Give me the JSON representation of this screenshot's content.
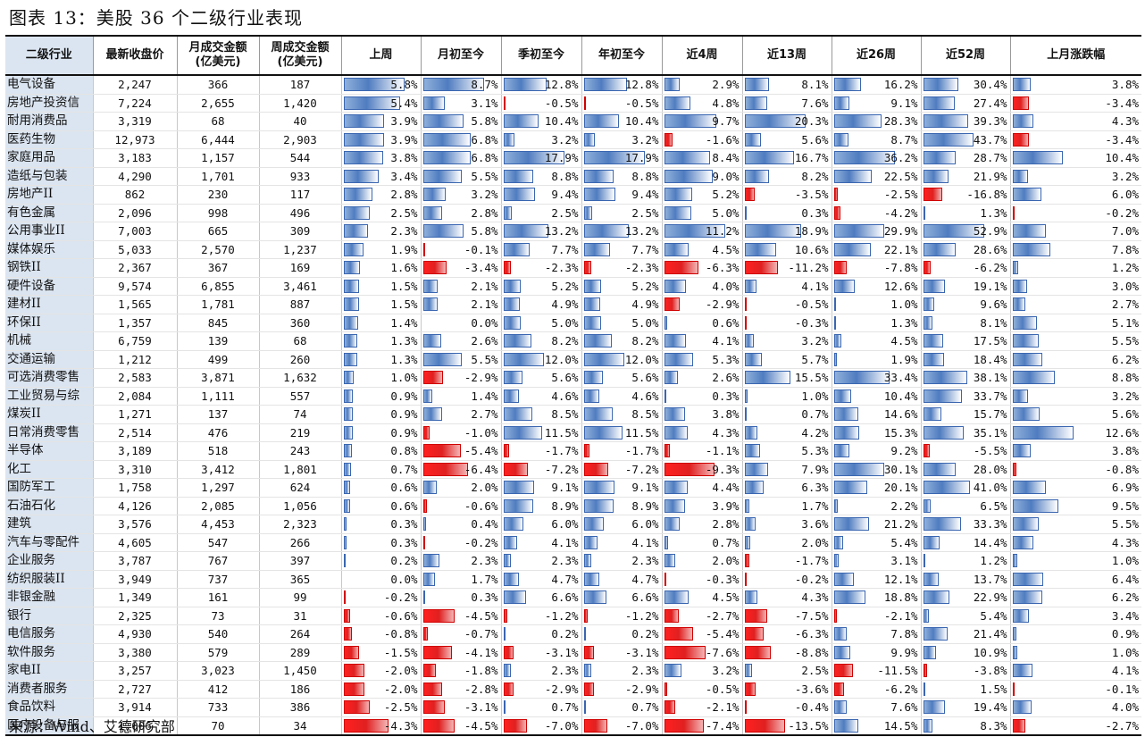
{
  "title": "图表 13：美股 36 个二级行业表现",
  "source": "来源：Wind、艾德研究部",
  "headers": [
    "二级行业",
    "最新收盘价",
    "月成交金额\n(亿美元)",
    "周成交金额\n(亿美元)",
    "上周",
    "月初至今",
    "季初至今",
    "年初至今",
    "近4周",
    "近13周",
    "近26周",
    "近52周",
    "上月涨跌幅"
  ],
  "rows": [
    [
      "电气设备",
      "2,247",
      "366",
      "187",
      5.8,
      8.7,
      12.8,
      12.8,
      2.9,
      8.1,
      16.2,
      30.4,
      3.8
    ],
    [
      "房地产投资信",
      "7,224",
      "2,655",
      "1,420",
      5.4,
      3.1,
      -0.5,
      -0.5,
      4.8,
      7.6,
      9.1,
      27.4,
      -3.4
    ],
    [
      "耐用消费品",
      "3,319",
      "68",
      "40",
      3.9,
      5.8,
      10.4,
      10.4,
      9.7,
      20.3,
      28.3,
      39.3,
      4.3
    ],
    [
      "医药生物",
      "12,973",
      "6,444",
      "2,903",
      3.9,
      6.8,
      3.2,
      3.2,
      -1.6,
      5.6,
      8.7,
      43.7,
      -3.4
    ],
    [
      "家庭用品",
      "3,183",
      "1,157",
      "544",
      3.8,
      6.8,
      17.9,
      17.9,
      8.4,
      16.7,
      36.2,
      28.7,
      10.4
    ],
    [
      "造纸与包装",
      "4,290",
      "1,701",
      "933",
      3.4,
      5.5,
      8.8,
      8.8,
      9.0,
      8.2,
      22.5,
      21.9,
      3.2
    ],
    [
      "房地产II",
      "862",
      "230",
      "117",
      2.8,
      3.2,
      9.4,
      9.4,
      5.2,
      -3.5,
      -2.5,
      -16.8,
      6.0
    ],
    [
      "有色金属",
      "2,096",
      "998",
      "496",
      2.5,
      2.8,
      2.5,
      2.5,
      5.0,
      0.3,
      -4.2,
      1.3,
      -0.2
    ],
    [
      "公用事业II",
      "7,003",
      "665",
      "309",
      2.3,
      5.8,
      13.2,
      13.2,
      11.2,
      18.9,
      29.9,
      52.9,
      7.0
    ],
    [
      "媒体娱乐",
      "5,033",
      "2,570",
      "1,237",
      1.9,
      -0.1,
      7.7,
      7.7,
      4.5,
      10.6,
      22.1,
      28.6,
      7.8
    ],
    [
      "钢铁II",
      "2,367",
      "367",
      "169",
      1.6,
      -3.4,
      -2.3,
      -2.3,
      -6.3,
      -11.2,
      -7.8,
      -6.2,
      1.2
    ],
    [
      "硬件设备",
      "9,574",
      "6,855",
      "3,461",
      1.5,
      2.1,
      5.2,
      5.2,
      4.0,
      4.1,
      12.6,
      19.1,
      3.0
    ],
    [
      "建材II",
      "1,565",
      "1,781",
      "887",
      1.5,
      2.1,
      4.9,
      4.9,
      -2.9,
      -0.5,
      1.0,
      9.6,
      2.7
    ],
    [
      "环保II",
      "1,357",
      "845",
      "360",
      1.4,
      0.0,
      5.0,
      5.0,
      0.6,
      -0.3,
      1.3,
      8.1,
      5.1
    ],
    [
      "机械",
      "6,759",
      "139",
      "68",
      1.3,
      2.6,
      8.2,
      8.2,
      4.1,
      3.2,
      4.5,
      17.5,
      5.5
    ],
    [
      "交通运输",
      "1,212",
      "499",
      "260",
      1.3,
      5.5,
      12.0,
      12.0,
      5.3,
      5.7,
      1.9,
      18.4,
      6.2
    ],
    [
      "可选消费零售",
      "2,583",
      "3,871",
      "1,632",
      1.0,
      -2.9,
      5.6,
      5.6,
      2.6,
      15.5,
      33.4,
      38.1,
      8.8
    ],
    [
      "工业贸易与综",
      "2,084",
      "1,111",
      "557",
      0.9,
      1.4,
      4.6,
      4.6,
      0.3,
      1.0,
      10.4,
      33.7,
      3.2
    ],
    [
      "煤炭II",
      "1,271",
      "137",
      "74",
      0.9,
      2.7,
      8.5,
      8.5,
      3.8,
      0.7,
      14.6,
      15.7,
      5.6
    ],
    [
      "日常消费零售",
      "2,514",
      "476",
      "219",
      0.9,
      -1.0,
      11.5,
      11.5,
      4.3,
      4.2,
      15.3,
      35.1,
      12.6
    ],
    [
      "半导体",
      "3,189",
      "518",
      "243",
      0.8,
      -5.4,
      -1.7,
      -1.7,
      -1.1,
      5.3,
      9.2,
      -5.5,
      3.8
    ],
    [
      "化工",
      "3,310",
      "3,412",
      "1,801",
      0.7,
      -6.4,
      -7.2,
      -7.2,
      -9.3,
      7.9,
      30.1,
      28.0,
      -0.8
    ],
    [
      "国防军工",
      "1,758",
      "1,297",
      "624",
      0.6,
      2.0,
      9.1,
      9.1,
      4.4,
      6.3,
      20.1,
      41.0,
      6.9
    ],
    [
      "石油石化",
      "4,126",
      "2,085",
      "1,056",
      0.6,
      -0.6,
      8.9,
      8.9,
      3.9,
      1.7,
      2.2,
      6.5,
      9.5
    ],
    [
      "建筑",
      "3,576",
      "4,453",
      "2,323",
      0.3,
      0.4,
      6.0,
      6.0,
      2.8,
      3.6,
      21.2,
      33.3,
      5.5
    ],
    [
      "汽车与零配件",
      "4,605",
      "547",
      "266",
      0.3,
      -0.2,
      4.1,
      4.1,
      0.7,
      2.0,
      5.4,
      14.4,
      4.3
    ],
    [
      "企业服务",
      "3,787",
      "767",
      "397",
      0.2,
      2.3,
      2.3,
      2.3,
      2.0,
      -1.7,
      3.1,
      1.2,
      1.0
    ],
    [
      "纺织服装II",
      "3,949",
      "737",
      "365",
      0.0,
      1.7,
      4.7,
      4.7,
      -0.3,
      -0.2,
      12.1,
      13.7,
      6.4
    ],
    [
      "非银金融",
      "1,349",
      "161",
      "99",
      -0.2,
      0.3,
      6.6,
      6.6,
      4.5,
      4.3,
      18.8,
      22.9,
      6.2
    ],
    [
      "银行",
      "2,325",
      "73",
      "31",
      -0.6,
      -4.5,
      -1.2,
      -1.2,
      -2.7,
      -7.5,
      -2.1,
      5.4,
      3.4
    ],
    [
      "电信服务",
      "4,930",
      "540",
      "264",
      -0.8,
      -0.7,
      0.2,
      0.2,
      -5.4,
      -6.3,
      7.8,
      21.4,
      0.9
    ],
    [
      "软件服务",
      "3,380",
      "579",
      "289",
      -1.5,
      -4.1,
      -3.1,
      -3.1,
      -7.6,
      -8.8,
      9.9,
      10.9,
      1.0
    ],
    [
      "家电II",
      "3,257",
      "3,023",
      "1,450",
      -2.0,
      -1.8,
      2.3,
      2.3,
      3.2,
      2.5,
      -11.5,
      -3.8,
      4.1
    ],
    [
      "消费者服务",
      "2,727",
      "412",
      "186",
      -2.0,
      -2.8,
      -2.9,
      -2.9,
      -0.5,
      -3.6,
      -6.2,
      1.5,
      -0.1
    ],
    [
      "食品饮料",
      "3,914",
      "733",
      "386",
      -2.5,
      -3.1,
      0.7,
      0.7,
      -2.1,
      -0.4,
      7.6,
      19.4,
      4.0
    ],
    [
      "医疗设备与服",
      "1,006",
      "70",
      "34",
      -4.3,
      -4.5,
      -7.0,
      -7.0,
      -7.4,
      -13.5,
      14.5,
      8.3,
      -2.7
    ]
  ]
}
